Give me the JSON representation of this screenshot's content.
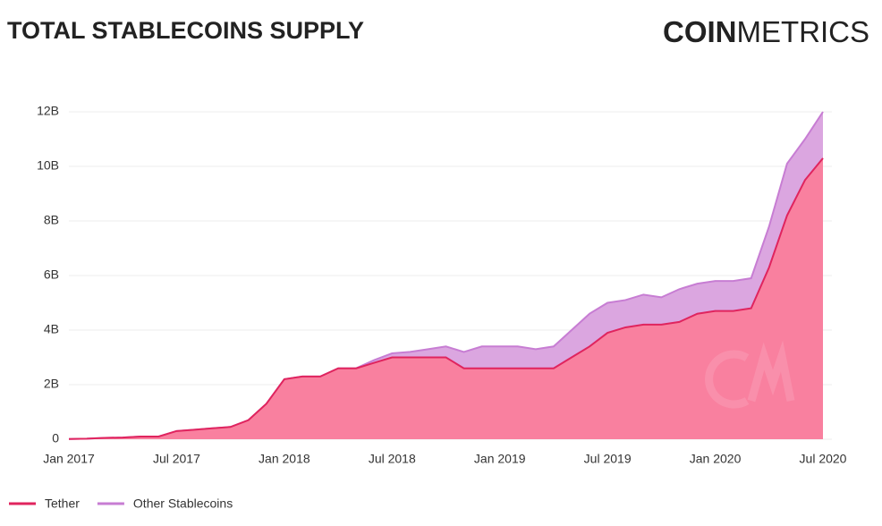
{
  "chart_data": {
    "type": "stacked-area",
    "title": "TOTAL STABLECOINS SUPPLY",
    "logo": {
      "bold": "COIN",
      "light": "METRICS"
    },
    "categories": [
      "Jan 2017",
      null,
      null,
      null,
      null,
      null,
      "Jul 2017",
      null,
      null,
      null,
      null,
      null,
      "Jan 2018",
      null,
      null,
      null,
      null,
      null,
      "Jul 2018",
      null,
      null,
      null,
      null,
      null,
      "Jan 2019",
      null,
      null,
      null,
      null,
      null,
      "Jul 2019",
      null,
      null,
      null,
      null,
      null,
      "Jan 2020",
      null,
      null,
      null,
      null,
      null,
      "Jul 2020"
    ],
    "series": [
      {
        "name": "Tether",
        "color": "#e0245e",
        "fill": "#f9809f",
        "values": [
          0.01,
          0.02,
          0.05,
          0.06,
          0.1,
          0.1,
          0.3,
          0.35,
          0.4,
          0.45,
          0.7,
          1.3,
          2.2,
          2.3,
          2.3,
          2.6,
          2.6,
          2.8,
          3.0,
          3.0,
          3.0,
          3.0,
          2.6,
          2.6,
          2.6,
          2.6,
          2.6,
          2.6,
          3.0,
          3.4,
          3.9,
          4.1,
          4.2,
          4.2,
          4.3,
          4.6,
          4.7,
          4.7,
          4.8,
          6.3,
          8.2,
          9.5,
          10.3
        ]
      },
      {
        "name": "Other Stablecoins",
        "color": "#c77dd3",
        "fill": "#dba6e0",
        "values": [
          0,
          0,
          0,
          0,
          0,
          0,
          0,
          0,
          0,
          0,
          0,
          0,
          0,
          0,
          0,
          0,
          0,
          0.1,
          0.15,
          0.2,
          0.3,
          0.4,
          0.6,
          0.8,
          0.8,
          0.8,
          0.7,
          0.8,
          1.0,
          1.2,
          1.1,
          1.0,
          1.1,
          1.0,
          1.2,
          1.1,
          1.1,
          1.1,
          1.1,
          1.5,
          1.9,
          1.5,
          1.7
        ]
      }
    ],
    "ylim": [
      0,
      12
    ],
    "yticks": [
      0,
      {
        "value": 2,
        "label": "2B"
      },
      {
        "value": 4,
        "label": "4B"
      },
      {
        "value": 6,
        "label": "6B"
      },
      {
        "value": 8,
        "label": "8B"
      },
      {
        "value": 10,
        "label": "10B"
      },
      {
        "value": 12,
        "label": "12B"
      }
    ],
    "grid": true,
    "legend": "bottom-left"
  }
}
